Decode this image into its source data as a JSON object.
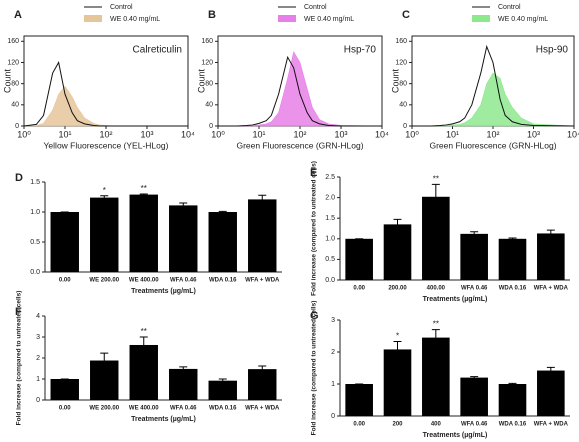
{
  "chart_data": [
    {
      "type": "histogram",
      "panel": "A",
      "title": "Calreticulin",
      "x_label": "Yellow Fluorescence (YEL-HLog)",
      "y_label": "Count",
      "log_x": true,
      "x": [
        1,
        2,
        3,
        5,
        7,
        10,
        15,
        20,
        30,
        50,
        70,
        100,
        150,
        200,
        300,
        500,
        1000,
        10000
      ],
      "series": [
        {
          "name": "Control",
          "color": "#111111",
          "values": [
            0,
            3,
            20,
            100,
            120,
            60,
            25,
            10,
            4,
            1,
            0,
            0,
            0,
            0,
            0,
            0,
            0,
            0
          ]
        },
        {
          "name": "WE 0.40 mg/mL",
          "color": "#e5c59a",
          "values": [
            0,
            1,
            5,
            30,
            60,
            75,
            55,
            35,
            15,
            5,
            2,
            1,
            0,
            0,
            0,
            0,
            0,
            0
          ]
        }
      ],
      "xlim": [
        1,
        10000
      ],
      "xticks": [
        {
          "value": 1,
          "label": "10⁰"
        },
        {
          "value": 10,
          "label": "10¹"
        },
        {
          "value": 100,
          "label": "10²"
        },
        {
          "value": 1000,
          "label": "10³"
        },
        {
          "value": 10000,
          "label": "10⁴"
        }
      ],
      "ylim": [
        0,
        170
      ],
      "yticks": [
        0,
        40,
        80,
        120,
        160
      ]
    },
    {
      "type": "histogram",
      "panel": "B",
      "title": "Hsp-70",
      "x_label": "Green Fluorescence (GRN-HLog)",
      "y_label": "Count",
      "log_x": true,
      "x": [
        1,
        2,
        3,
        5,
        7,
        10,
        15,
        20,
        30,
        50,
        70,
        100,
        150,
        200,
        300,
        500,
        1000,
        10000
      ],
      "series": [
        {
          "name": "Control",
          "color": "#111111",
          "values": [
            0,
            0,
            0,
            1,
            2,
            5,
            10,
            20,
            60,
            130,
            110,
            60,
            25,
            10,
            4,
            1,
            0,
            0
          ]
        },
        {
          "name": "WE 0.40 mg/mL",
          "color": "#e77fe8",
          "values": [
            0,
            0,
            0,
            0,
            1,
            2,
            4,
            8,
            25,
            90,
            140,
            120,
            70,
            35,
            12,
            4,
            1,
            0
          ]
        }
      ],
      "xlim": [
        1,
        10000
      ],
      "xticks": [
        {
          "value": 1,
          "label": "10⁰"
        },
        {
          "value": 10,
          "label": "10¹"
        },
        {
          "value": 100,
          "label": "10²"
        },
        {
          "value": 1000,
          "label": "10³"
        },
        {
          "value": 10000,
          "label": "10⁴"
        }
      ],
      "ylim": [
        0,
        170
      ],
      "yticks": [
        0,
        40,
        80,
        120,
        160
      ]
    },
    {
      "type": "histogram",
      "panel": "C",
      "title": "Hsp-90",
      "x_label": "Green Fluorescence (GRN-HLog)",
      "y_label": "Count",
      "log_x": true,
      "x": [
        1,
        2,
        3,
        5,
        7,
        10,
        15,
        20,
        30,
        50,
        70,
        100,
        150,
        200,
        300,
        500,
        1000,
        10000
      ],
      "series": [
        {
          "name": "Control",
          "color": "#111111",
          "values": [
            0,
            0,
            0,
            1,
            2,
            4,
            8,
            15,
            40,
            100,
            150,
            120,
            50,
            20,
            8,
            3,
            1,
            0
          ]
        },
        {
          "name": "WE 0.40 mg/mL",
          "color": "#8ee88e",
          "values": [
            0,
            0,
            0,
            0,
            1,
            2,
            3,
            6,
            15,
            40,
            80,
            100,
            90,
            60,
            35,
            15,
            4,
            0
          ]
        }
      ],
      "xlim": [
        1,
        10000
      ],
      "xticks": [
        {
          "value": 1,
          "label": "10⁰"
        },
        {
          "value": 10,
          "label": "10¹"
        },
        {
          "value": 100,
          "label": "10²"
        },
        {
          "value": 1000,
          "label": "10³"
        },
        {
          "value": 10000,
          "label": "10⁴"
        }
      ],
      "ylim": [
        0,
        170
      ],
      "yticks": [
        0,
        40,
        80,
        120,
        160
      ]
    },
    {
      "type": "bar",
      "panel": "D",
      "x_label": "Treatments (µg/mL)",
      "color": "#000000",
      "categories": [
        "0.00",
        "WE 200.00",
        "WE 400.00",
        "WFA 0.46",
        "WDA 0.16",
        "WFA + WDA"
      ],
      "values": [
        1.0,
        1.24,
        1.29,
        1.11,
        1.0,
        1.21
      ],
      "errors": [
        0,
        0.03,
        0.01,
        0.04,
        0.01,
        0.07
      ],
      "significance": [
        null,
        "*",
        "**",
        null,
        null,
        null
      ],
      "ylim": [
        0,
        1.5
      ],
      "yticks": [
        {
          "value": 0,
          "label": "0.0"
        },
        {
          "value": 0.5,
          "label": "0.5"
        },
        {
          "value": 1,
          "label": "1.0"
        },
        {
          "value": 1.5,
          "label": "1.5"
        }
      ]
    },
    {
      "type": "bar",
      "panel": "E",
      "x_label": "Treatments (µg/mL)",
      "y_label": "Fold increase (compared to untreated cells)",
      "color": "#000000",
      "categories": [
        "0.00",
        "200.00",
        "400.00",
        "WFA 0.46",
        "WDA 0.16",
        "WFA + WDA"
      ],
      "values": [
        1.0,
        1.35,
        2.02,
        1.12,
        1.0,
        1.13
      ],
      "errors": [
        0,
        0.12,
        0.3,
        0.05,
        0.02,
        0.08
      ],
      "significance": [
        null,
        null,
        "**",
        null,
        null,
        null
      ],
      "ylim": [
        0,
        2.5
      ],
      "yticks": [
        {
          "value": 0,
          "label": "0.0"
        },
        {
          "value": 0.5,
          "label": "0.5"
        },
        {
          "value": 1,
          "label": "1.0"
        },
        {
          "value": 1.5,
          "label": "1.5"
        },
        {
          "value": 2,
          "label": "2.0"
        },
        {
          "value": 2.5,
          "label": "2.5"
        }
      ]
    },
    {
      "type": "bar",
      "panel": "F",
      "x_label": "Treatments (µg/mL)",
      "y_label": "Fold increase (compared to untreated cells)",
      "color": "#000000",
      "categories": [
        "0.00",
        "WE 200.00",
        "WE 400.00",
        "WFA 0.46",
        "WDA 0.16",
        "WFA + WDA"
      ],
      "values": [
        1.0,
        1.88,
        2.62,
        1.48,
        0.92,
        1.47
      ],
      "errors": [
        0,
        0.35,
        0.38,
        0.1,
        0.08,
        0.15
      ],
      "significance": [
        null,
        null,
        "**",
        null,
        null,
        null
      ],
      "ylim": [
        0,
        4
      ],
      "yticks": [
        0,
        1,
        2,
        3,
        4
      ]
    },
    {
      "type": "bar",
      "panel": "G",
      "x_label": "Treatments (µg/mL)",
      "y_label": "Fold increase (compared to untreated cells)",
      "color": "#000000",
      "categories": [
        "0.00",
        "200",
        "400",
        "WFA 0.46",
        "WDA 0.16",
        "WFA + WDA"
      ],
      "values": [
        1.0,
        2.08,
        2.45,
        1.2,
        1.0,
        1.42
      ],
      "errors": [
        0,
        0.25,
        0.25,
        0.03,
        0.02,
        0.1
      ],
      "significance": [
        null,
        "*",
        "**",
        null,
        null,
        null
      ],
      "ylim": [
        0,
        3
      ],
      "yticks": [
        0,
        1,
        2,
        3
      ]
    }
  ]
}
